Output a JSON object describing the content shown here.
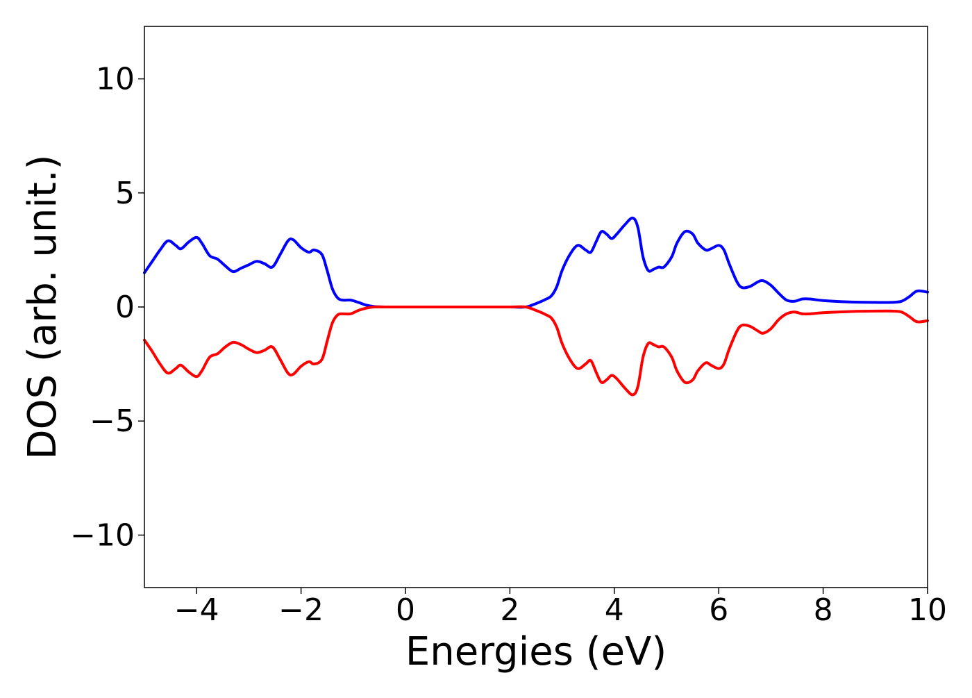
{
  "chart_data": {
    "type": "line",
    "title": "",
    "xlabel": "Energies (eV)",
    "ylabel": "DOS (arb. unit.)",
    "xlim": [
      -5,
      10
    ],
    "ylim": [
      -12.3,
      12.3
    ],
    "xticks": [
      -4,
      -2,
      0,
      2,
      4,
      6,
      8,
      10
    ],
    "xtick_labels": [
      "−4",
      "−2",
      "0",
      "2",
      "4",
      "6",
      "8",
      "10"
    ],
    "yticks": [
      -10,
      -5,
      0,
      5,
      10
    ],
    "ytick_labels": [
      "−10",
      "−5",
      "0",
      "5",
      "10"
    ],
    "grid": false,
    "legend": "none",
    "series": [
      {
        "color": "#0000ff",
        "x": [
          -5.0,
          -4.85,
          -4.7,
          -4.55,
          -4.4,
          -4.3,
          -4.15,
          -4.0,
          -3.9,
          -3.75,
          -3.6,
          -3.45,
          -3.3,
          -3.15,
          -3.0,
          -2.85,
          -2.7,
          -2.55,
          -2.4,
          -2.25,
          -2.15,
          -2.0,
          -1.85,
          -1.75,
          -1.6,
          -1.5,
          -1.4,
          -1.3,
          -1.2,
          -1.05,
          -0.9,
          -0.75,
          -0.6,
          -0.4,
          0.0,
          0.5,
          1.0,
          1.5,
          2.0,
          2.3,
          2.5,
          2.7,
          2.8,
          2.9,
          3.0,
          3.15,
          3.3,
          3.45,
          3.55,
          3.65,
          3.75,
          3.85,
          3.95,
          4.05,
          4.2,
          4.35,
          4.45,
          4.55,
          4.65,
          4.75,
          4.85,
          4.95,
          5.1,
          5.2,
          5.35,
          5.5,
          5.6,
          5.75,
          5.85,
          6.0,
          6.1,
          6.2,
          6.35,
          6.45,
          6.6,
          6.75,
          6.85,
          7.0,
          7.15,
          7.3,
          7.45,
          7.6,
          7.75,
          8.0,
          8.5,
          9.0,
          9.3,
          9.5,
          9.65,
          9.8,
          10.0
        ],
        "y": [
          1.5,
          2.0,
          2.5,
          2.9,
          2.7,
          2.55,
          2.85,
          3.05,
          2.8,
          2.25,
          2.1,
          1.8,
          1.55,
          1.7,
          1.85,
          2.0,
          1.9,
          1.75,
          2.3,
          2.9,
          2.95,
          2.6,
          2.4,
          2.5,
          2.3,
          1.6,
          0.8,
          0.4,
          0.3,
          0.3,
          0.2,
          0.08,
          0.02,
          0.0,
          0.0,
          0.0,
          0.0,
          0.0,
          0.0,
          0.0,
          0.15,
          0.35,
          0.5,
          0.9,
          1.6,
          2.3,
          2.7,
          2.5,
          2.4,
          2.85,
          3.3,
          3.2,
          3.0,
          3.2,
          3.6,
          3.9,
          3.5,
          2.2,
          1.6,
          1.65,
          1.75,
          1.75,
          2.2,
          2.8,
          3.3,
          3.2,
          2.8,
          2.5,
          2.55,
          2.7,
          2.5,
          1.9,
          1.1,
          0.85,
          0.9,
          1.1,
          1.15,
          0.95,
          0.6,
          0.3,
          0.25,
          0.35,
          0.35,
          0.28,
          0.22,
          0.2,
          0.2,
          0.25,
          0.45,
          0.7,
          0.65
        ]
      },
      {
        "color": "#ff0000",
        "x": [
          -5.0,
          -4.85,
          -4.7,
          -4.55,
          -4.4,
          -4.3,
          -4.15,
          -4.0,
          -3.9,
          -3.75,
          -3.6,
          -3.45,
          -3.3,
          -3.15,
          -3.0,
          -2.85,
          -2.7,
          -2.55,
          -2.4,
          -2.25,
          -2.15,
          -2.0,
          -1.85,
          -1.75,
          -1.6,
          -1.5,
          -1.4,
          -1.3,
          -1.2,
          -1.05,
          -0.9,
          -0.75,
          -0.6,
          -0.4,
          0.0,
          0.5,
          1.0,
          1.5,
          2.0,
          2.3,
          2.5,
          2.7,
          2.8,
          2.9,
          3.0,
          3.15,
          3.3,
          3.45,
          3.55,
          3.65,
          3.75,
          3.85,
          3.95,
          4.05,
          4.2,
          4.35,
          4.45,
          4.55,
          4.65,
          4.75,
          4.85,
          4.95,
          5.1,
          5.2,
          5.35,
          5.5,
          5.6,
          5.75,
          5.85,
          6.0,
          6.1,
          6.2,
          6.35,
          6.45,
          6.6,
          6.75,
          6.85,
          7.0,
          7.15,
          7.3,
          7.45,
          7.6,
          7.75,
          8.0,
          8.5,
          9.0,
          9.3,
          9.5,
          9.65,
          9.8,
          10.0
        ],
        "y": [
          -1.45,
          -1.95,
          -2.5,
          -2.9,
          -2.7,
          -2.55,
          -2.85,
          -3.05,
          -2.8,
          -2.2,
          -2.05,
          -1.75,
          -1.55,
          -1.65,
          -1.85,
          -2.0,
          -1.9,
          -1.75,
          -2.3,
          -2.9,
          -2.95,
          -2.6,
          -2.4,
          -2.5,
          -2.3,
          -1.5,
          -0.7,
          -0.35,
          -0.3,
          -0.3,
          -0.15,
          -0.05,
          0.0,
          0.0,
          0.0,
          0.0,
          0.0,
          0.0,
          0.0,
          0.0,
          -0.15,
          -0.35,
          -0.5,
          -0.9,
          -1.6,
          -2.3,
          -2.7,
          -2.5,
          -2.35,
          -2.85,
          -3.3,
          -3.2,
          -3.0,
          -3.15,
          -3.55,
          -3.85,
          -3.5,
          -2.2,
          -1.6,
          -1.65,
          -1.75,
          -1.75,
          -2.2,
          -2.8,
          -3.3,
          -3.2,
          -2.8,
          -2.45,
          -2.55,
          -2.7,
          -2.5,
          -1.85,
          -1.05,
          -0.8,
          -0.85,
          -1.05,
          -1.15,
          -0.95,
          -0.55,
          -0.3,
          -0.22,
          -0.3,
          -0.3,
          -0.25,
          -0.2,
          -0.18,
          -0.18,
          -0.22,
          -0.42,
          -0.65,
          -0.6
        ]
      }
    ]
  }
}
